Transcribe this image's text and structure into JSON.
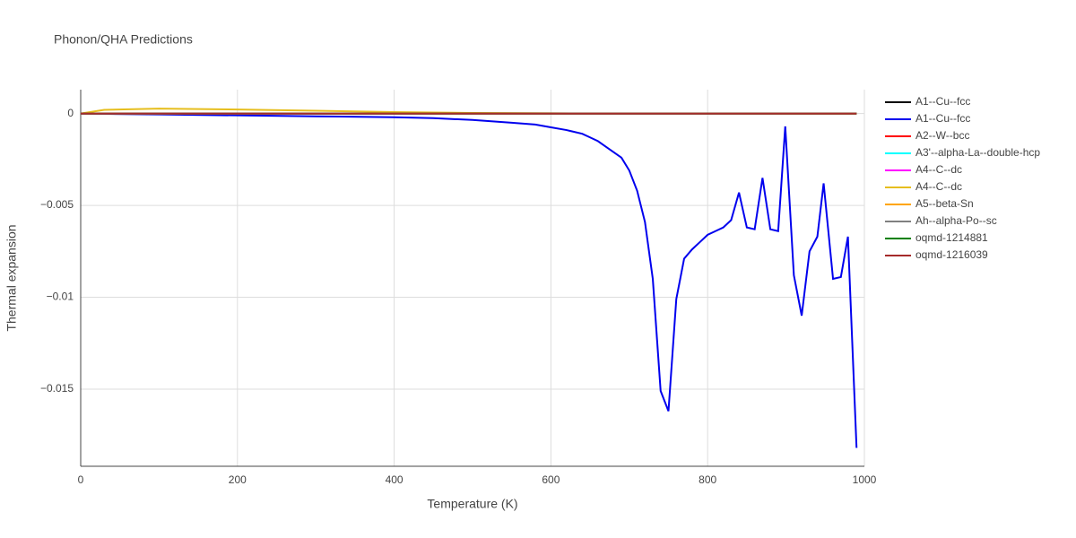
{
  "chart_data": {
    "type": "line",
    "title": "Phonon/QHA Predictions",
    "x_label": "Temperature (K)",
    "y_label": "Thermal expansion",
    "xlim": [
      0,
      1000
    ],
    "ylim": [
      -0.0192,
      0.0013
    ],
    "xticks": [
      0,
      200,
      400,
      600,
      800,
      1000
    ],
    "yticks": [
      {
        "value": 0,
        "label": "0"
      },
      {
        "value": -0.005,
        "label": "−0.005"
      },
      {
        "value": -0.01,
        "label": "−0.01"
      },
      {
        "value": -0.015,
        "label": "−0.015"
      }
    ],
    "grid": true,
    "legend": "right",
    "series": [
      {
        "name": "A1--Cu--fcc",
        "color": "#000000",
        "x": [
          0,
          990
        ],
        "values": [
          0,
          0
        ]
      },
      {
        "name": "A1--Cu--fcc",
        "color": "#0000ee",
        "x": [
          0,
          100,
          200,
          300,
          400,
          450,
          500,
          550,
          580,
          600,
          620,
          640,
          650,
          660,
          670,
          680,
          690,
          700,
          710,
          720,
          730,
          740,
          750,
          760,
          770,
          780,
          790,
          800,
          810,
          820,
          830,
          840,
          850,
          860,
          870,
          880,
          890,
          899,
          910,
          920,
          930,
          940,
          948,
          960,
          970,
          979,
          990
        ],
        "values": [
          0,
          -5e-05,
          -0.0001,
          -0.00015,
          -0.0002,
          -0.00025,
          -0.00035,
          -0.0005,
          -0.0006,
          -0.00075,
          -0.0009,
          -0.0011,
          -0.0013,
          -0.0015,
          -0.0018,
          -0.0021,
          -0.0024,
          -0.0031,
          -0.0042,
          -0.0059,
          -0.009,
          -0.0151,
          -0.0162,
          -0.0101,
          -0.0079,
          -0.0074,
          -0.007,
          -0.0066,
          -0.0064,
          -0.0062,
          -0.0058,
          -0.0043,
          -0.0062,
          -0.0063,
          -0.0035,
          -0.0063,
          -0.0064,
          -0.0007,
          -0.0088,
          -0.011,
          -0.0075,
          -0.0067,
          -0.0038,
          -0.009,
          -0.0089,
          -0.0067,
          -0.0182
        ]
      },
      {
        "name": "A2--W--bcc",
        "color": "#ff0000",
        "x": [
          0,
          990
        ],
        "values": [
          0,
          0
        ]
      },
      {
        "name": "A3'--alpha-La--double-hcp",
        "color": "#00ffff",
        "x": [
          0,
          990
        ],
        "values": [
          0,
          0
        ]
      },
      {
        "name": "A4--C--dc",
        "color": "#ff00ff",
        "x": [
          0,
          990
        ],
        "values": [
          0,
          0
        ]
      },
      {
        "name": "A4--C--dc",
        "color": "#e6be1e",
        "x": [
          0,
          30,
          100,
          200,
          300,
          400,
          500,
          600,
          990
        ],
        "values": [
          0,
          0.0002,
          0.00027,
          0.00022,
          0.00015,
          8e-05,
          3e-05,
          1e-05,
          0
        ]
      },
      {
        "name": "A5--beta-Sn",
        "color": "#ffa500",
        "x": [
          0,
          990
        ],
        "values": [
          0,
          0
        ]
      },
      {
        "name": "Ah--alpha-Po--sc",
        "color": "#808080",
        "x": [
          0,
          990
        ],
        "values": [
          0,
          0
        ]
      },
      {
        "name": "oqmd-1214881",
        "color": "#008000",
        "x": [
          0,
          990
        ],
        "values": [
          0,
          0
        ]
      },
      {
        "name": "oqmd-1216039",
        "color": "#a52a2a",
        "x": [
          0,
          990
        ],
        "values": [
          0,
          0
        ]
      }
    ]
  }
}
